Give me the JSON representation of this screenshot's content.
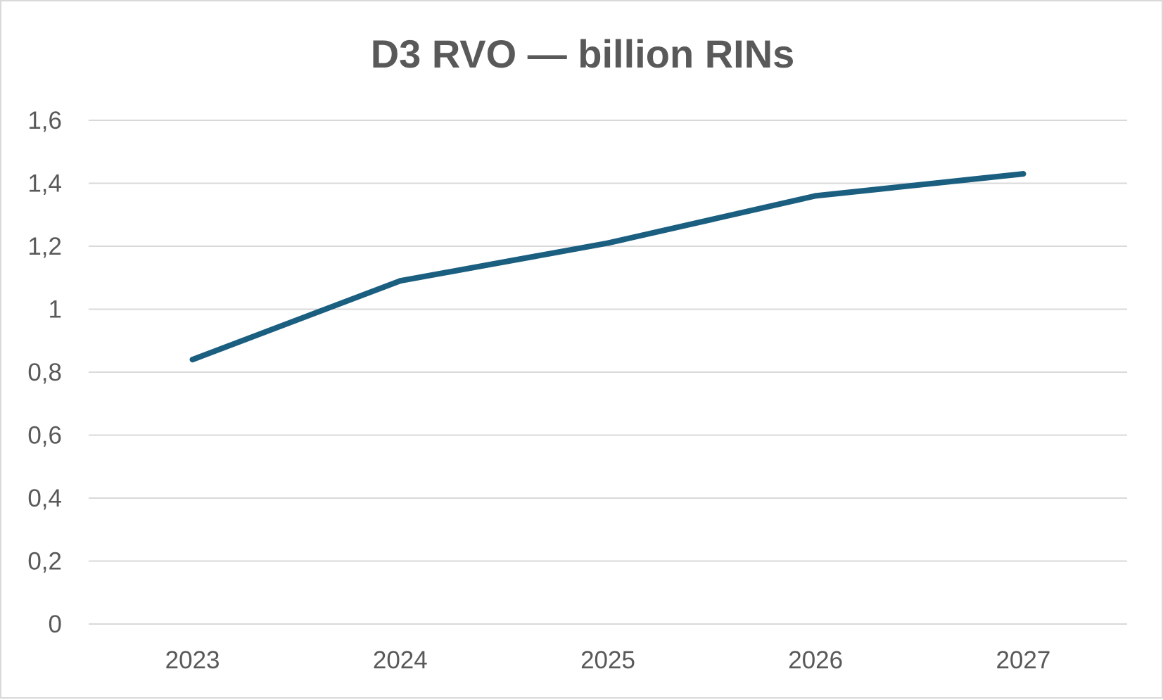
{
  "chart_data": {
    "type": "line",
    "title": "D3 RVO — billion RINs",
    "xlabel": "",
    "ylabel": "",
    "categories": [
      "2023",
      "2024",
      "2025",
      "2026",
      "2027"
    ],
    "series": [
      {
        "values": [
          0.84,
          1.09,
          1.21,
          1.36,
          1.43
        ]
      }
    ],
    "ylim": [
      0,
      1.6
    ],
    "yticks": [
      0,
      0.2,
      0.4,
      0.6,
      0.8,
      1,
      1.2,
      1.4,
      1.6
    ],
    "ytick_labels": [
      "0",
      "0,2",
      "0,4",
      "0,6",
      "0,8",
      "1",
      "1,2",
      "1,4",
      "1,6"
    ],
    "grid": true,
    "legend": "none",
    "colors": {
      "series": "#1a5e80",
      "grid": "#d9d9d9",
      "text": "#595959",
      "border": "#d9d9d9"
    }
  }
}
